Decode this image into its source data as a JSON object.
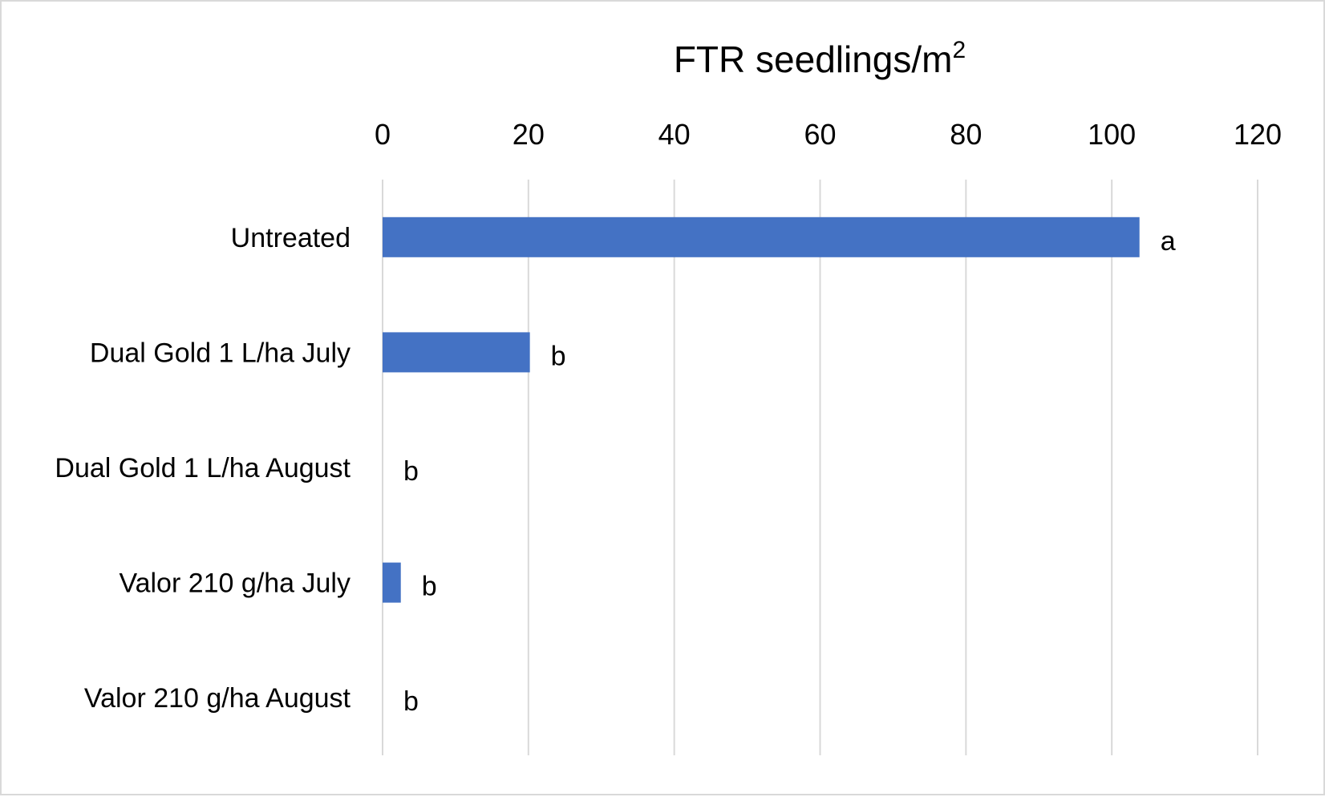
{
  "chart_data": {
    "type": "bar",
    "orientation": "horizontal",
    "xlabel": "FTR seedlings/m",
    "xlabel_superscript": "2",
    "xlabel_position": "top",
    "categories": [
      "Untreated",
      "Dual Gold 1 L/ha July",
      "Dual Gold 1 L/ha August",
      "Valor 210 g/ha July",
      "Valor 210 g/ha August"
    ],
    "values": [
      103.8,
      20.2,
      0,
      2.5,
      0
    ],
    "data_labels": [
      "a",
      "b",
      "b",
      "b",
      "b"
    ],
    "xlim": [
      0,
      120
    ],
    "xticks": [
      "0",
      "20",
      "40",
      "60",
      "80",
      "100",
      "120"
    ],
    "grid": true,
    "legend": "none",
    "bar_color": "#4472c4",
    "grid_color": "#d9d9d9"
  }
}
